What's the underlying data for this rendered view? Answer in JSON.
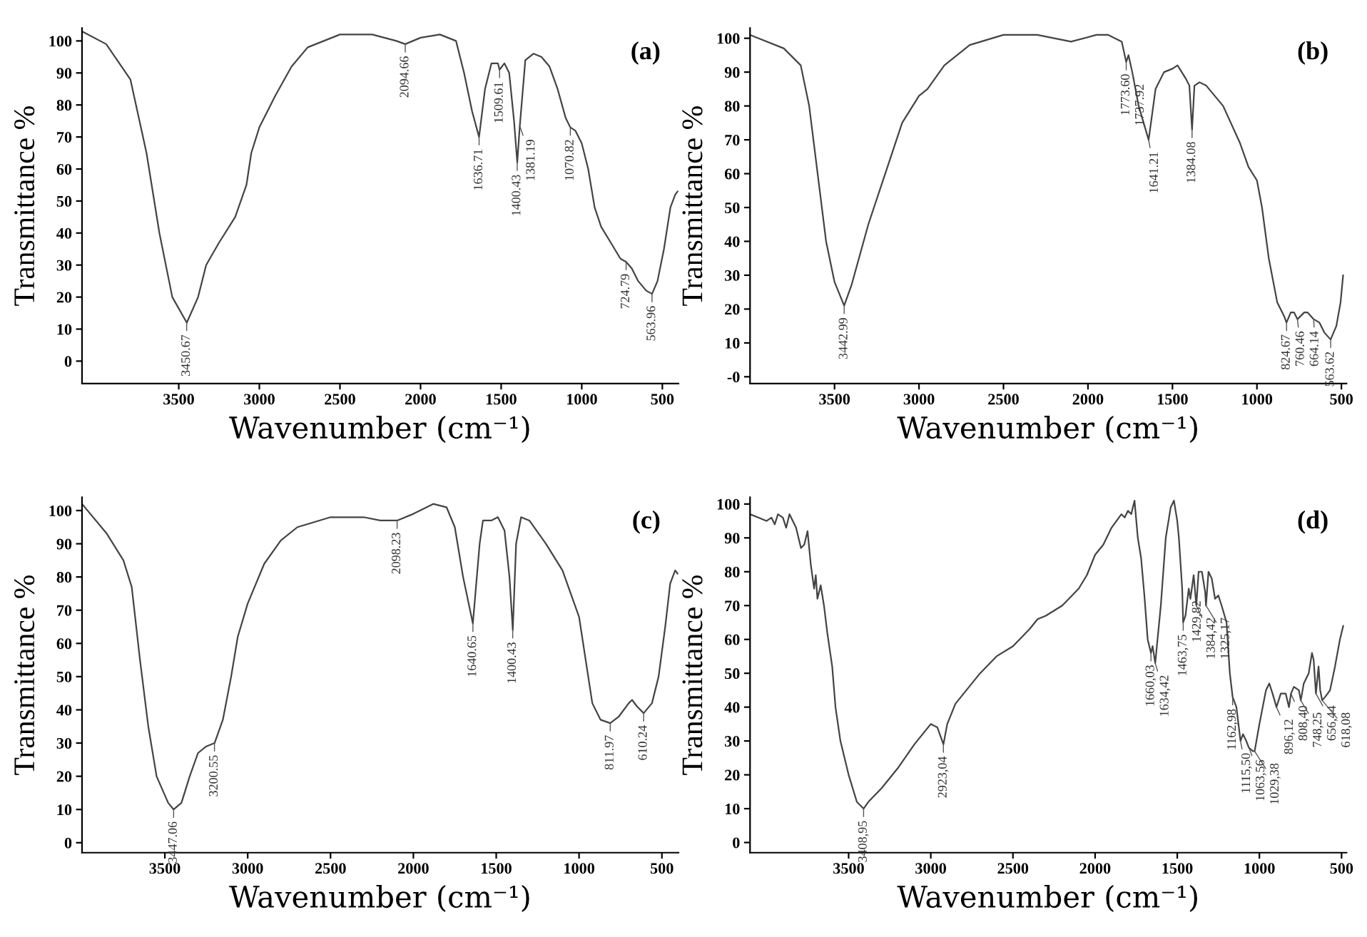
{
  "chart_data": [
    {
      "type": "line",
      "title": "(a)",
      "xlabel": "Wavenumber (cm⁻¹)",
      "ylabel": "Transmittance %",
      "color": "#444444",
      "grid": false,
      "legend": false,
      "marker": "none",
      "line_style": "solid",
      "xlim": [
        4100,
        400
      ],
      "ylim": [
        -7,
        104
      ],
      "xticks": [
        3500,
        3000,
        2500,
        2000,
        1500,
        1000,
        500
      ],
      "yticks": [
        0,
        10,
        20,
        30,
        40,
        50,
        60,
        70,
        80,
        90,
        100
      ],
      "x": [
        4100,
        3950,
        3800,
        3700,
        3620,
        3540,
        3450,
        3380,
        3330,
        3250,
        3150,
        3080,
        3050,
        3000,
        2900,
        2800,
        2700,
        2500,
        2300,
        2150,
        2095,
        2000,
        1880,
        1780,
        1730,
        1680,
        1637,
        1600,
        1560,
        1520,
        1510,
        1480,
        1450,
        1420,
        1400,
        1385,
        1350,
        1300,
        1250,
        1200,
        1150,
        1100,
        1071,
        1040,
        1000,
        960,
        920,
        880,
        820,
        760,
        725,
        690,
        650,
        600,
        564,
        530,
        490,
        450,
        420,
        405
      ],
      "values": [
        103,
        99,
        88,
        65,
        40,
        20,
        12,
        20,
        30,
        37,
        45,
        55,
        65,
        73,
        83,
        92,
        98,
        102,
        102,
        100,
        99,
        101,
        102,
        100,
        90,
        78,
        70,
        85,
        93,
        93,
        91,
        93,
        90,
        75,
        62,
        73,
        94,
        96,
        95,
        92,
        85,
        76,
        73,
        72,
        68,
        60,
        48,
        42,
        37,
        32,
        31,
        29,
        25,
        22,
        21,
        25,
        35,
        48,
        52,
        53
      ],
      "annotations": [
        {
          "text": "3450.67",
          "x": 3450.67,
          "y": 12
        },
        {
          "text": "2094.66",
          "x": 2094.66,
          "y": 99
        },
        {
          "text": "1636.71",
          "x": 1636.71,
          "y": 70
        },
        {
          "text": "1509.61",
          "x": 1509.61,
          "y": 91
        },
        {
          "text": "1400.43",
          "x": 1400.43,
          "y": 62
        },
        {
          "text": "1381.19",
          "x": 1381.19,
          "y": 73
        },
        {
          "text": "1070.82",
          "x": 1070.82,
          "y": 73
        },
        {
          "text": "724.79",
          "x": 724.79,
          "y": 31
        },
        {
          "text": "563.96",
          "x": 563.96,
          "y": 21
        }
      ]
    },
    {
      "type": "line",
      "title": "(b)",
      "xlabel": "Wavenumber (cm⁻¹)",
      "ylabel": "Transmittance %",
      "color": "#444444",
      "grid": false,
      "legend": false,
      "marker": "none",
      "line_style": "solid",
      "xlim": [
        4000,
        470
      ],
      "ylim": [
        -2,
        103
      ],
      "xticks": [
        3500,
        3000,
        2500,
        2000,
        1500,
        1000,
        500
      ],
      "yticks": [
        {
          "value": 0,
          "label": "-0"
        },
        10,
        20,
        30,
        40,
        50,
        60,
        70,
        80,
        90,
        100
      ],
      "x": [
        4000,
        3800,
        3700,
        3650,
        3600,
        3550,
        3500,
        3443,
        3400,
        3300,
        3200,
        3100,
        3000,
        2950,
        2850,
        2700,
        2500,
        2300,
        2100,
        1950,
        1880,
        1800,
        1774,
        1760,
        1738,
        1700,
        1641,
        1600,
        1550,
        1500,
        1470,
        1420,
        1400,
        1384,
        1370,
        1340,
        1300,
        1200,
        1100,
        1050,
        1000,
        970,
        930,
        880,
        840,
        825,
        800,
        780,
        760,
        720,
        700,
        664,
        630,
        600,
        564,
        530,
        505,
        490
      ],
      "values": [
        101,
        97,
        92,
        80,
        60,
        40,
        28,
        21,
        27,
        45,
        60,
        75,
        83,
        85,
        92,
        98,
        101,
        101,
        99,
        101,
        101,
        99,
        93,
        95,
        90,
        80,
        70,
        85,
        90,
        91,
        92,
        88,
        86,
        73,
        86,
        87,
        86,
        80,
        69,
        62,
        58,
        50,
        35,
        22,
        18,
        16,
        19,
        19,
        17,
        19,
        19,
        17,
        16,
        13,
        11,
        15,
        22,
        30
      ],
      "annotations": [
        {
          "text": "3442.99",
          "x": 3442.99,
          "y": 21
        },
        {
          "text": "1773.60",
          "x": 1773.6,
          "y": 93
        },
        {
          "text": "1737.92",
          "x": 1737.92,
          "y": 90
        },
        {
          "text": "1641.21",
          "x": 1641.21,
          "y": 70
        },
        {
          "text": "1384.08",
          "x": 1384.08,
          "y": 73
        },
        {
          "text": "824.67",
          "x": 824.67,
          "y": 16
        },
        {
          "text": "760.46",
          "x": 760.46,
          "y": 17
        },
        {
          "text": "664.14",
          "x": 664.14,
          "y": 17
        },
        {
          "text": "563.62",
          "x": 563.62,
          "y": 11
        }
      ]
    },
    {
      "type": "line",
      "title": "(c)",
      "xlabel": "Wavenumber (cm⁻¹)",
      "ylabel": "Transmittance %",
      "color": "#444444",
      "grid": false,
      "legend": false,
      "marker": "none",
      "line_style": "solid",
      "xlim": [
        4000,
        400
      ],
      "ylim": [
        -3,
        104
      ],
      "xticks": [
        3500,
        3000,
        2500,
        2000,
        1500,
        1000,
        500
      ],
      "yticks": [
        0,
        10,
        20,
        30,
        40,
        50,
        60,
        70,
        80,
        90,
        100
      ],
      "x": [
        4000,
        3850,
        3750,
        3700,
        3650,
        3600,
        3550,
        3480,
        3447,
        3400,
        3350,
        3300,
        3250,
        3200,
        3150,
        3100,
        3060,
        3000,
        2900,
        2800,
        2700,
        2500,
        2300,
        2200,
        2098,
        2000,
        1880,
        1800,
        1750,
        1700,
        1641,
        1600,
        1580,
        1530,
        1490,
        1450,
        1420,
        1400,
        1380,
        1350,
        1300,
        1200,
        1100,
        1000,
        960,
        920,
        870,
        812,
        760,
        700,
        680,
        650,
        610,
        560,
        520,
        480,
        450,
        420,
        405
      ],
      "values": [
        102,
        93,
        85,
        77,
        55,
        35,
        20,
        12,
        10,
        12,
        20,
        27,
        29,
        30,
        37,
        50,
        62,
        72,
        84,
        91,
        95,
        98,
        98,
        97,
        97,
        99,
        102,
        101,
        95,
        80,
        66,
        90,
        97,
        97,
        98,
        94,
        80,
        64,
        90,
        98,
        97,
        90,
        82,
        68,
        55,
        42,
        37,
        36,
        38,
        42,
        43,
        41,
        39,
        42,
        50,
        65,
        78,
        82,
        81
      ],
      "annotations": [
        {
          "text": "3447.06",
          "x": 3447.06,
          "y": 10
        },
        {
          "text": "3200.55",
          "x": 3200.55,
          "y": 30
        },
        {
          "text": "2098.23",
          "x": 2098.23,
          "y": 97
        },
        {
          "text": "1640.65",
          "x": 1640.65,
          "y": 66
        },
        {
          "text": "1400.43",
          "x": 1400.43,
          "y": 64
        },
        {
          "text": "811.97",
          "x": 811.97,
          "y": 36
        },
        {
          "text": "610.24",
          "x": 610.24,
          "y": 39
        }
      ]
    },
    {
      "type": "line",
      "title": "(d)",
      "xlabel": "Wavenumber (cm⁻¹)",
      "ylabel": "Transmittance %",
      "color": "#444444",
      "grid": false,
      "legend": false,
      "marker": "none",
      "line_style": "solid",
      "xlim": [
        4100,
        470
      ],
      "ylim": [
        -3,
        102
      ],
      "xticks": [
        3500,
        3000,
        2500,
        2000,
        1500,
        1000,
        500
      ],
      "yticks": [
        0,
        10,
        20,
        30,
        40,
        50,
        60,
        70,
        80,
        90,
        100
      ],
      "x": [
        4100,
        4050,
        4000,
        3970,
        3950,
        3930,
        3900,
        3880,
        3860,
        3840,
        3820,
        3790,
        3770,
        3750,
        3730,
        3710,
        3700,
        3690,
        3670,
        3650,
        3630,
        3600,
        3580,
        3550,
        3500,
        3450,
        3409,
        3380,
        3300,
        3200,
        3100,
        3000,
        2960,
        2923,
        2900,
        2850,
        2800,
        2700,
        2600,
        2500,
        2400,
        2350,
        2300,
        2200,
        2100,
        2050,
        2000,
        1950,
        1900,
        1870,
        1840,
        1820,
        1800,
        1780,
        1760,
        1740,
        1720,
        1700,
        1680,
        1660,
        1650,
        1634,
        1600,
        1570,
        1540,
        1520,
        1500,
        1490,
        1470,
        1464,
        1450,
        1430,
        1420,
        1400,
        1384,
        1370,
        1350,
        1330,
        1325,
        1310,
        1290,
        1270,
        1250,
        1230,
        1200,
        1180,
        1163,
        1140,
        1115,
        1100,
        1080,
        1064,
        1040,
        1029,
        1000,
        960,
        940,
        920,
        896,
        870,
        840,
        820,
        808,
        790,
        760,
        748,
        730,
        700,
        680,
        670,
        656,
        640,
        630,
        618,
        600,
        570,
        540,
        510,
        490
      ],
      "values": [
        97,
        96,
        95,
        96,
        94,
        97,
        96,
        93,
        97,
        95,
        93,
        87,
        88,
        92,
        82,
        75,
        79,
        72,
        76,
        70,
        62,
        52,
        40,
        30,
        20,
        12,
        10,
        12,
        16,
        22,
        29,
        35,
        34,
        29,
        35,
        41,
        44,
        50,
        55,
        58,
        63,
        66,
        67,
        70,
        75,
        79,
        85,
        88,
        93,
        95,
        97,
        96,
        98,
        97,
        101,
        90,
        84,
        73,
        60,
        56,
        58,
        53,
        70,
        90,
        99,
        101,
        95,
        90,
        75,
        65,
        67,
        75,
        72,
        79,
        70,
        80,
        80,
        74,
        70,
        80,
        78,
        72,
        73,
        70,
        65,
        50,
        43,
        40,
        30,
        32,
        30,
        28,
        27,
        27,
        35,
        45,
        47,
        44,
        40,
        44,
        44,
        40,
        44,
        46,
        45,
        42,
        47,
        50,
        56,
        54,
        44,
        52,
        45,
        42,
        43,
        45,
        52,
        60,
        64
      ],
      "annotations": [
        {
          "text": "3408,95",
          "x": 3408.95,
          "y": 10
        },
        {
          "text": "2923,04",
          "x": 2923.04,
          "y": 29
        },
        {
          "text": "1660,03",
          "x": 1660.03,
          "y": 56
        },
        {
          "text": "1634,42",
          "x": 1634.42,
          "y": 53
        },
        {
          "text": "1463,75",
          "x": 1463.75,
          "y": 65
        },
        {
          "text": "1429,82",
          "x": 1429.82,
          "y": 75
        },
        {
          "text": "1384,42",
          "x": 1384.42,
          "y": 70
        },
        {
          "text": "1325,17",
          "x": 1325.17,
          "y": 70
        },
        {
          "text": "1162,98",
          "x": 1162.98,
          "y": 43
        },
        {
          "text": "1115,50",
          "x": 1115.5,
          "y": 30
        },
        {
          "text": "1063,56",
          "x": 1063.56,
          "y": 28
        },
        {
          "text": "1029,38",
          "x": 1029.38,
          "y": 27
        },
        {
          "text": "896,12",
          "x": 896.12,
          "y": 40
        },
        {
          "text": "808,40",
          "x": 808.4,
          "y": 44
        },
        {
          "text": "748,25",
          "x": 748.25,
          "y": 42
        },
        {
          "text": "656,44",
          "x": 656.44,
          "y": 44
        },
        {
          "text": "618,08",
          "x": 618.08,
          "y": 42
        }
      ]
    }
  ]
}
